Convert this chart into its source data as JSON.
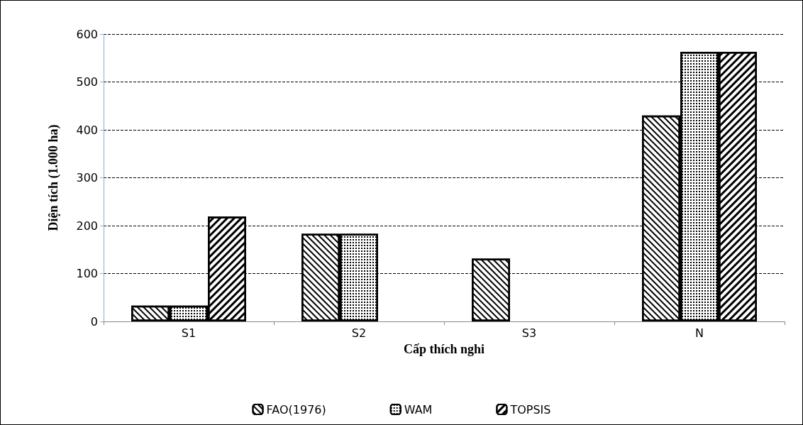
{
  "chart_data": {
    "type": "bar",
    "xlabel": "Cấp thích nghi",
    "ylabel": "Diện tích (1.000 ha)",
    "categories": [
      "S1",
      "S2",
      "S3",
      "N"
    ],
    "series": [
      {
        "name": "FAO(1976)",
        "color": "#ffffff",
        "values": [
          33,
          183,
          131,
          430
        ]
      },
      {
        "name": "WAM",
        "color": "#ffffff",
        "values": [
          33,
          183,
          null,
          563
        ]
      },
      {
        "name": "TOPSIS",
        "color": "#ffffff",
        "values": [
          219,
          null,
          null,
          563
        ]
      }
    ],
    "ylim": [
      0,
      600
    ],
    "yticks": [
      0,
      100,
      200,
      300,
      400,
      500,
      600
    ],
    "grid": "y",
    "legend": "bottom"
  }
}
